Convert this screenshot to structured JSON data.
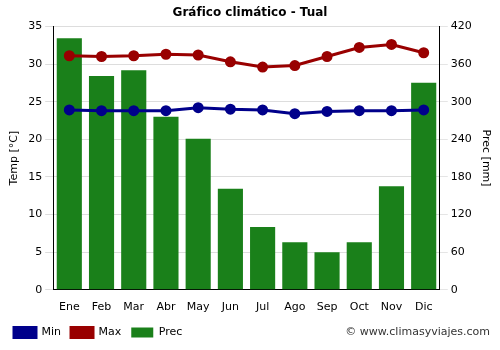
{
  "chart_data": {
    "type": "bar",
    "title": "Gráfico climático - Tual",
    "categories": [
      "Ene",
      "Feb",
      "Mar",
      "Abr",
      "May",
      "Jun",
      "Jul",
      "Ago",
      "Sep",
      "Oct",
      "Nov",
      "Dic"
    ],
    "series": [
      {
        "name": "Prec",
        "type": "bar",
        "color": "#1a801a",
        "axis": "y2",
        "values": [
          401,
          341,
          350,
          276,
          241,
          161,
          100,
          76,
          60,
          76,
          165,
          330
        ]
      },
      {
        "name": "Min",
        "type": "line",
        "color": "#00008b",
        "marker": "circle",
        "values": [
          23.9,
          23.8,
          23.8,
          23.8,
          24.2,
          24.0,
          23.9,
          23.4,
          23.7,
          23.8,
          23.8,
          23.9
        ]
      },
      {
        "name": "Max",
        "type": "line",
        "color": "#990000",
        "marker": "circle",
        "values": [
          31.1,
          31.0,
          31.1,
          31.3,
          31.2,
          30.3,
          29.6,
          29.8,
          31.0,
          32.2,
          32.6,
          31.5
        ]
      }
    ],
    "ylabel": "Temp [°C]",
    "y2label": "Prec [mm]",
    "ylim": [
      0,
      35
    ],
    "yticks": [
      0,
      5,
      10,
      15,
      20,
      25,
      30,
      35
    ],
    "y2lim": [
      0,
      420
    ],
    "y2ticks": [
      0,
      60,
      120,
      180,
      240,
      300,
      360,
      420
    ],
    "grid": true,
    "legend": "bottom left",
    "annotations": [
      "© www.climasyviajes.com"
    ]
  }
}
